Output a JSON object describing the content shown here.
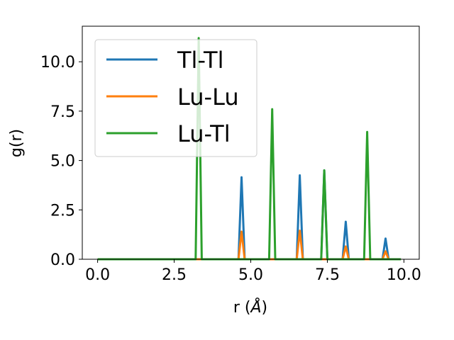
{
  "chart_data": {
    "type": "line",
    "xlabel_prefix": "r (",
    "xlabel_unit": "Å",
    "xlabel_suffix": ")",
    "ylabel": "g(r)",
    "xlim": [
      -0.5,
      10.5
    ],
    "ylim": [
      0,
      11.8
    ],
    "x_ticks": [
      0.0,
      2.5,
      5.0,
      7.5,
      10.0
    ],
    "x_tick_labels": [
      "0.0",
      "2.5",
      "5.0",
      "7.5",
      "10.0"
    ],
    "y_ticks": [
      0.0,
      2.5,
      5.0,
      7.5,
      10.0
    ],
    "y_tick_labels": [
      "0.0",
      "2.5",
      "5.0",
      "7.5",
      "10.0"
    ],
    "grid": false,
    "legend_position": "top-left",
    "series": [
      {
        "name": "Tl-Tl",
        "color": "#1f77b4",
        "x": [
          0.0,
          4.6,
          4.7,
          4.8,
          6.5,
          6.6,
          6.7,
          7.3,
          7.4,
          7.5,
          8.0,
          8.1,
          8.2,
          9.3,
          9.4,
          9.5,
          9.9
        ],
        "y": [
          0.0,
          0.0,
          4.15,
          0.0,
          0.0,
          4.25,
          0.0,
          0.0,
          4.5,
          0.0,
          0.0,
          1.9,
          0.0,
          0.0,
          1.05,
          0.0,
          0.0
        ]
      },
      {
        "name": "Lu-Lu",
        "color": "#ff7f0e",
        "x": [
          0.0,
          4.6,
          4.7,
          4.8,
          6.5,
          6.6,
          6.7,
          8.0,
          8.1,
          8.2,
          9.3,
          9.4,
          9.5,
          9.9
        ],
        "y": [
          0.0,
          0.0,
          1.4,
          0.0,
          0.0,
          1.45,
          0.0,
          0.0,
          0.65,
          0.0,
          0.0,
          0.4,
          0.0,
          0.0
        ]
      },
      {
        "name": "Lu-Tl",
        "color": "#2ca02c",
        "x": [
          0.0,
          3.2,
          3.3,
          3.4,
          5.6,
          5.7,
          5.8,
          7.3,
          7.4,
          7.5,
          8.7,
          8.8,
          8.9,
          9.9
        ],
        "y": [
          0.0,
          0.0,
          11.2,
          0.0,
          0.0,
          7.6,
          0.0,
          0.0,
          4.5,
          0.0,
          0.0,
          6.45,
          0.0,
          0.0
        ]
      }
    ]
  }
}
